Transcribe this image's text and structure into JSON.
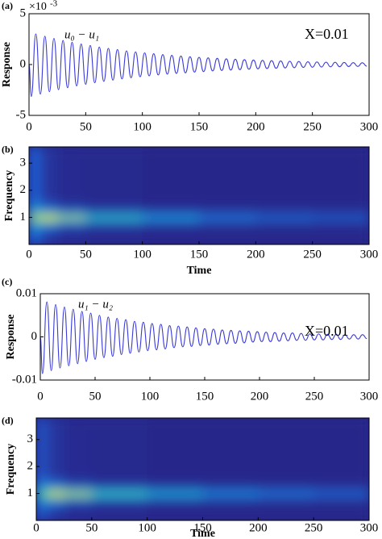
{
  "chart_data": [
    {
      "type": "line",
      "panel_label": "(a)",
      "ylabel": "Response",
      "y_multiplier": "×10",
      "y_exponent": "-3",
      "annotations": [
        "u₀ − u₁",
        "X=0.01"
      ],
      "x": [
        0,
        2,
        6,
        10,
        14,
        18,
        22,
        26,
        30,
        34,
        38,
        42,
        46,
        50,
        54,
        58,
        62,
        66,
        70,
        74,
        78,
        82,
        86,
        90,
        94,
        98,
        102,
        106,
        110,
        114,
        118,
        122,
        126,
        130,
        134,
        138,
        142,
        146,
        150,
        154,
        158,
        162,
        166,
        170,
        174,
        178,
        182,
        186,
        190,
        194,
        198,
        202,
        206,
        210,
        214,
        218,
        222,
        226,
        230,
        234,
        238,
        242,
        246,
        250,
        254,
        258,
        262,
        266,
        270,
        274,
        278,
        282,
        286,
        290,
        294,
        298
      ],
      "series": [
        {
          "color": "#3a3ad8",
          "values": [
            0,
            -3.14,
            3.01,
            -2.9,
            2.78,
            -2.67,
            2.57,
            -2.47,
            2.37,
            -2.28,
            2.19,
            -2.1,
            2.02,
            -1.94,
            1.87,
            -1.79,
            1.72,
            -1.65,
            1.59,
            -1.53,
            1.47,
            -1.41,
            1.35,
            -1.3,
            1.25,
            -1.2,
            1.15,
            -1.11,
            1.07,
            -1.02,
            0.98,
            -0.94,
            0.91,
            -0.87,
            0.84,
            -0.81,
            0.77,
            -0.74,
            0.71,
            -0.69,
            0.66,
            -0.63,
            0.61,
            -0.58,
            0.56,
            -0.54,
            0.52,
            -0.5,
            0.48,
            -0.46,
            0.44,
            -0.42,
            0.41,
            -0.39,
            0.38,
            -0.36,
            0.35,
            -0.33,
            0.32,
            -0.31,
            0.3,
            -0.28,
            0.27,
            -0.26,
            0.25,
            -0.24,
            0.23,
            -0.22,
            0.22,
            -0.21,
            0.2,
            -0.19,
            0.18,
            -0.18,
            0.17,
            -0.16
          ]
        }
      ],
      "xlim": [
        0,
        300
      ],
      "xticks": [
        0,
        50,
        100,
        150,
        200,
        250,
        300
      ],
      "ylim": [
        -5,
        5
      ],
      "yticks": [
        -5,
        0,
        5
      ]
    },
    {
      "type": "heatmap",
      "panel_label": "(b)",
      "xlabel": "Time",
      "ylabel": "Frequency",
      "xbins": [
        0,
        10,
        25,
        50,
        100,
        150,
        200,
        250,
        300
      ],
      "ybins": [
        0,
        0.4,
        0.7,
        0.85,
        0.95,
        1.05,
        1.15,
        1.3,
        1.6,
        3.6
      ],
      "z": [
        [
          0.2,
          0.05,
          0.02,
          0.01,
          0,
          0,
          0,
          0
        ],
        [
          0.3,
          0.15,
          0.06,
          0.03,
          0.02,
          0.01,
          0.01,
          0.01
        ],
        [
          0.4,
          0.35,
          0.2,
          0.12,
          0.08,
          0.05,
          0.04,
          0.03
        ],
        [
          0.6,
          0.7,
          0.5,
          0.35,
          0.25,
          0.18,
          0.14,
          0.12
        ],
        [
          0.85,
          1,
          0.8,
          0.55,
          0.4,
          0.3,
          0.25,
          0.22
        ],
        [
          0.6,
          0.7,
          0.5,
          0.35,
          0.25,
          0.18,
          0.14,
          0.12
        ],
        [
          0.4,
          0.35,
          0.2,
          0.12,
          0.08,
          0.05,
          0.04,
          0.03
        ],
        [
          0.3,
          0.15,
          0.06,
          0.03,
          0.02,
          0.01,
          0.01,
          0.01
        ],
        [
          0.2,
          0.05,
          0.02,
          0.01,
          0,
          0,
          0,
          0
        ]
      ],
      "colormap": [
        "#27268a",
        "#1f5fd4",
        "#12a9d6",
        "#4fc88a",
        "#c8d63a",
        "#f5e81f"
      ],
      "xlim": [
        0,
        300
      ],
      "xticks": [
        0,
        50,
        100,
        150,
        200,
        250,
        300
      ],
      "ylim": [
        0,
        3.6
      ],
      "yticks": [
        1,
        2,
        3
      ]
    },
    {
      "type": "line",
      "panel_label": "(c)",
      "ylabel": "Response",
      "annotations": [
        "u₁ − u₂",
        "X=0.01"
      ],
      "x": [
        0,
        2,
        6,
        10,
        14,
        18,
        22,
        26,
        30,
        34,
        38,
        42,
        46,
        50,
        54,
        58,
        62,
        66,
        70,
        74,
        78,
        82,
        86,
        90,
        94,
        98,
        102,
        106,
        110,
        114,
        118,
        122,
        126,
        130,
        134,
        138,
        142,
        146,
        150,
        154,
        158,
        162,
        166,
        170,
        174,
        178,
        182,
        186,
        190,
        194,
        198,
        202,
        206,
        210,
        214,
        218,
        222,
        226,
        230,
        234,
        238,
        242,
        246,
        250,
        254,
        258,
        262,
        266,
        270,
        274,
        278,
        282,
        286,
        290,
        294,
        298
      ],
      "series": [
        {
          "color": "#3a3ad8",
          "values": [
            0,
            -0.0085,
            0.0081,
            -0.0078,
            0.0075,
            -0.0072,
            0.0069,
            -0.0067,
            0.0064,
            -0.0062,
            0.0059,
            -0.0057,
            0.0055,
            -0.0052,
            0.005,
            -0.0048,
            0.0046,
            -0.0045,
            0.0043,
            -0.0041,
            0.004,
            -0.0038,
            0.0036,
            -0.0035,
            0.0034,
            -0.0032,
            0.0031,
            -0.003,
            0.0029,
            -0.0028,
            0.0026,
            -0.0025,
            0.0025,
            -0.0023,
            0.0023,
            -0.0022,
            0.0021,
            -0.002,
            0.0019,
            -0.0019,
            0.0018,
            -0.0017,
            0.0016,
            -0.0016,
            0.0015,
            -0.0015,
            0.0014,
            -0.0014,
            0.0013,
            -0.0012,
            0.0012,
            -0.0011,
            0.0011,
            -0.0011,
            0.001,
            -0.001,
            0.0009,
            -0.0009,
            0.0009,
            -0.0008,
            0.0008,
            -0.0008,
            0.0007,
            -0.0007,
            0.0007,
            -0.0007,
            0.0006,
            -0.0006,
            0.0006,
            -0.0006,
            0.0005,
            -0.0005,
            0.0005,
            -0.0005,
            0.0005,
            -0.0004
          ]
        }
      ],
      "xlim": [
        0,
        300
      ],
      "xticks": [
        0,
        50,
        100,
        150,
        200,
        250,
        300
      ],
      "ylim": [
        -0.01,
        0.01
      ],
      "yticks": [
        -0.01,
        0,
        0.01
      ]
    },
    {
      "type": "heatmap",
      "panel_label": "(d)",
      "xlabel": "Time",
      "ylabel": "Frequency",
      "xbins": [
        0,
        10,
        25,
        50,
        100,
        150,
        200,
        250,
        300
      ],
      "ybins": [
        0,
        0.4,
        0.7,
        0.85,
        0.95,
        1.05,
        1.15,
        1.3,
        1.6,
        3.8
      ],
      "z": [
        [
          0.15,
          0.05,
          0.02,
          0.01,
          0,
          0,
          0,
          0
        ],
        [
          0.25,
          0.15,
          0.06,
          0.03,
          0.02,
          0.01,
          0.01,
          0.01
        ],
        [
          0.35,
          0.35,
          0.22,
          0.14,
          0.1,
          0.07,
          0.05,
          0.04
        ],
        [
          0.5,
          0.7,
          0.55,
          0.4,
          0.3,
          0.22,
          0.18,
          0.15
        ],
        [
          0.6,
          0.95,
          0.85,
          0.6,
          0.45,
          0.35,
          0.3,
          0.25
        ],
        [
          0.5,
          0.7,
          0.55,
          0.4,
          0.3,
          0.22,
          0.18,
          0.15
        ],
        [
          0.35,
          0.35,
          0.22,
          0.14,
          0.1,
          0.07,
          0.05,
          0.04
        ],
        [
          0.25,
          0.15,
          0.06,
          0.03,
          0.02,
          0.01,
          0.01,
          0.01
        ],
        [
          0.15,
          0.05,
          0.02,
          0.01,
          0,
          0,
          0,
          0
        ]
      ],
      "colormap": [
        "#27268a",
        "#1f5fd4",
        "#12a9d6",
        "#4fc88a",
        "#c8d63a",
        "#f5e81f"
      ],
      "xlim": [
        0,
        300
      ],
      "xticks": [
        0,
        50,
        100,
        150,
        200,
        250,
        300
      ],
      "ylim": [
        0,
        3.8
      ],
      "yticks": [
        1,
        2,
        3
      ]
    }
  ]
}
